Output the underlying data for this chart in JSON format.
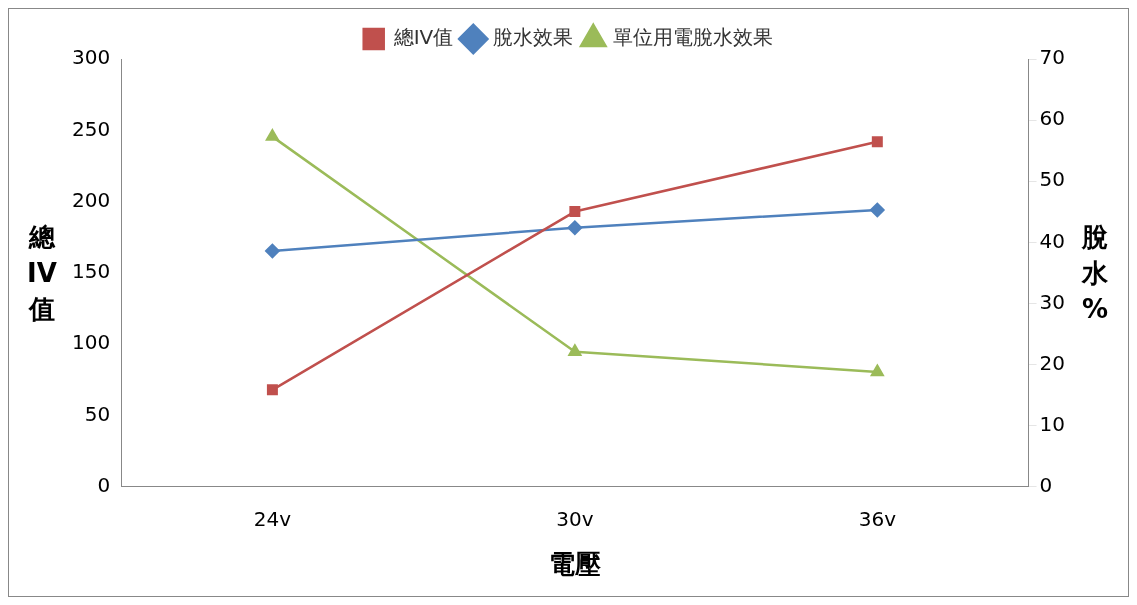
{
  "chart_data": {
    "type": "line",
    "xlabel": "電壓",
    "ylabel": "總IV值",
    "y2label": "脫水%",
    "categories": [
      "24v",
      "30v",
      "36v"
    ],
    "series": [
      {
        "name": "總IV值",
        "color": "#c0504d",
        "values": [
          68,
          193,
          242
        ],
        "marker": "square"
      },
      {
        "name": "脫水效果",
        "color": "#4f81bd",
        "values": [
          38.6,
          42.4,
          45.3
        ],
        "axis": "y2",
        "marker": "diamond"
      },
      {
        "name": "單位用電脫水效果",
        "color": "#9bbb59",
        "values": [
          57.3,
          22.1,
          18.8
        ],
        "axis": "y2",
        "marker": "triangle"
      }
    ],
    "ylim": [
      0,
      300
    ],
    "yticks": [
      0,
      50,
      100,
      150,
      200,
      250,
      300
    ],
    "y2lim": [
      0,
      70
    ],
    "y2ticks": [
      0,
      10,
      20,
      30,
      40,
      50,
      60,
      70
    ],
    "grid": false,
    "legend": "top"
  }
}
